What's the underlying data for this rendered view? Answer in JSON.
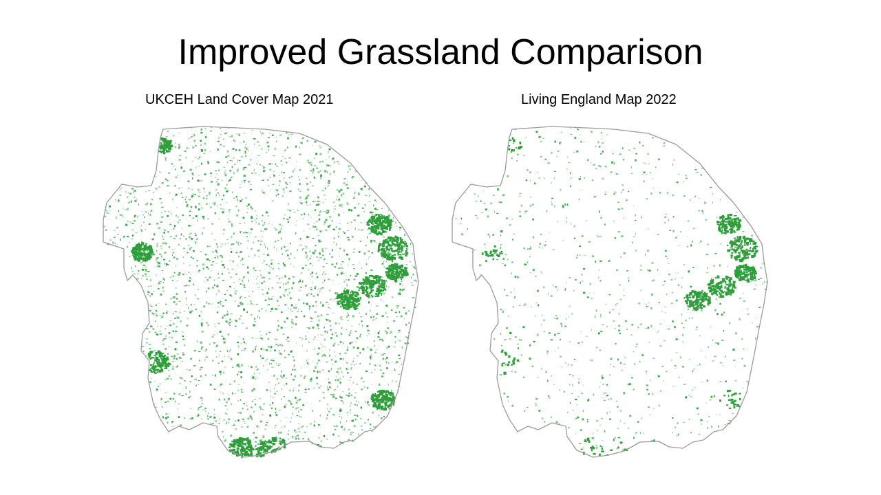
{
  "slide": {
    "title": "Improved Grassland Comparison"
  },
  "maps": [
    {
      "id": "ukceh",
      "caption": "UKCEH Land Cover Map 2021",
      "density": 1.0,
      "seed": 11
    },
    {
      "id": "living-england",
      "caption": "Living England Map 2022",
      "density": 0.32,
      "seed": 47
    }
  ],
  "style": {
    "grassland_color": "#2e9e3a",
    "outline_color": "#9a9a9a"
  }
}
